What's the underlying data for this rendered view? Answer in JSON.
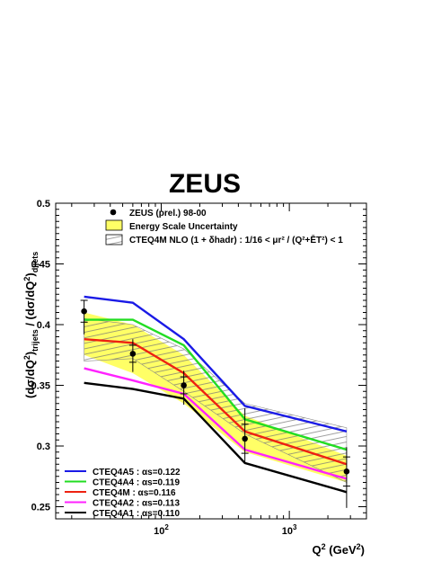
{
  "chart_data": {
    "type": "line",
    "title": "ZEUS",
    "xlabel": "Q² (GeV²)",
    "ylabel": "(dσ/dQ²)trijets / (dσ/dQ²)dijets",
    "x_scale": "log",
    "xlim": [
      15,
      4000
    ],
    "ylim": [
      0.24,
      0.5
    ],
    "x_ticks": [
      100,
      1000
    ],
    "x_tick_labels": [
      "10²",
      "10³"
    ],
    "y_ticks": [
      0.25,
      0.3,
      0.35,
      0.4,
      0.45,
      0.5
    ],
    "y_tick_labels": [
      "0.25",
      "0.3",
      "0.35",
      "0.4",
      "0.45",
      "0.5"
    ],
    "grid": false,
    "x": [
      25,
      60,
      150,
      450,
      2800
    ],
    "data_points": {
      "name": "ZEUS (prel.) 98-00",
      "y": [
        0.411,
        0.376,
        0.35,
        0.306,
        0.279
      ],
      "yerr_low": [
        0.019,
        0.015,
        0.016,
        0.02,
        0.03
      ],
      "yerr_high": [
        0.009,
        0.012,
        0.012,
        0.025,
        0.02
      ],
      "yerr_inner": [
        0.009,
        0.007,
        0.007,
        0.012,
        0.012
      ]
    },
    "energy_scale_band": {
      "name": "Energy Scale Uncertainty",
      "color": "#ffff66",
      "lower": [
        0.375,
        0.36,
        0.335,
        0.295,
        0.27
      ],
      "upper": [
        0.41,
        0.4,
        0.375,
        0.325,
        0.292
      ]
    },
    "nlo_band": {
      "name": "CTEQ4M NLO (1 + δhadr) : 1/16 < μr² / (Q²+ĒT²) < 1",
      "lower": [
        0.37,
        0.372,
        0.345,
        0.31,
        0.27
      ],
      "upper": [
        0.405,
        0.4,
        0.38,
        0.335,
        0.315
      ]
    },
    "series": [
      {
        "name": "CTEQ4A5 : αs=0.122",
        "color": "#1a1ae6",
        "values": [
          0.423,
          0.418,
          0.388,
          0.333,
          0.312
        ]
      },
      {
        "name": "CTEQ4A4 : αs=0.119",
        "color": "#22dd22",
        "values": [
          0.404,
          0.404,
          0.383,
          0.322,
          0.297
        ]
      },
      {
        "name": "CTEQ4M : αs=0.116",
        "color": "#ee2211",
        "values": [
          0.388,
          0.385,
          0.36,
          0.312,
          0.285
        ]
      },
      {
        "name": "CTEQ4A2 : αs=0.113",
        "color": "#ff22ff",
        "values": [
          0.364,
          0.354,
          0.343,
          0.297,
          0.273
        ]
      },
      {
        "name": "CTEQ4A1 : αs=0.110",
        "color": "#000000",
        "values": [
          0.352,
          0.347,
          0.339,
          0.286,
          0.262
        ]
      }
    ]
  }
}
